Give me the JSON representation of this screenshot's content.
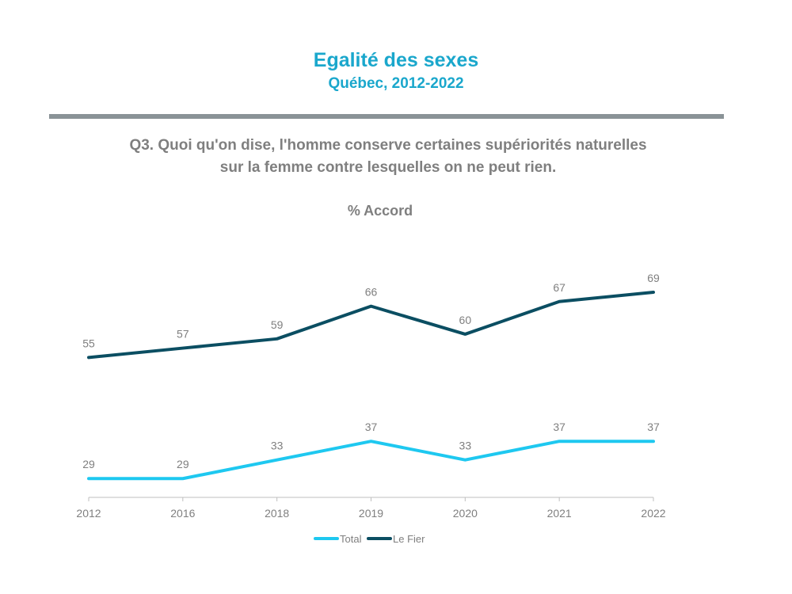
{
  "header": {
    "title": "Egalité des sexes",
    "subtitle": "Québec, 2012-2022"
  },
  "question": {
    "line1": "Q3. Quoi qu'on dise, l'homme conserve certaines supériorités naturelles",
    "line2": "sur la femme contre lesquelles on ne peut rien."
  },
  "chart_data": {
    "type": "line",
    "title": "% Accord",
    "categories": [
      "2012",
      "2016",
      "2018",
      "2019",
      "2020",
      "2021",
      "2022"
    ],
    "series": [
      {
        "name": "Total",
        "values": [
          29,
          29,
          33,
          37,
          33,
          37,
          37
        ],
        "color": "#1ec8f0"
      },
      {
        "name": "Le Fier",
        "values": [
          55,
          57,
          59,
          66,
          60,
          67,
          69
        ],
        "color": "#0b4e62"
      }
    ],
    "ylim": [
      27,
      69
    ],
    "grid": false,
    "legend": "bottom-center",
    "data_labels": true,
    "axis_color": "#bfbfbf"
  }
}
